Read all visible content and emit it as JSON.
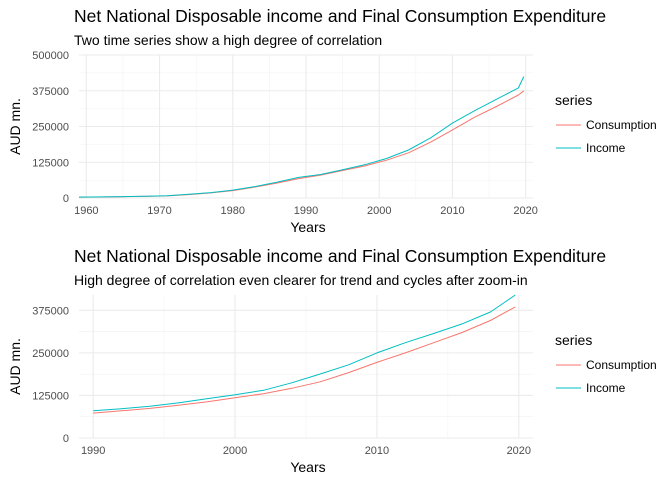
{
  "chart_data": [
    {
      "type": "line",
      "title": "Net National Disposable income and Final Consumption Expenditure",
      "subtitle": "Two time series show a high degree of correlation",
      "xlabel": "Years",
      "ylabel": "AUD mn.",
      "xlim": [
        1959,
        2021
      ],
      "ylim": [
        0,
        500000
      ],
      "xticks": [
        "1960",
        "1970",
        "1980",
        "1990",
        "2000",
        "2010",
        "2020"
      ],
      "yticks": [
        "0",
        "125000",
        "250000",
        "375000",
        "500000"
      ],
      "grid": true,
      "legend": {
        "title": "series",
        "position": "right",
        "entries": [
          "Consumption",
          "Income"
        ]
      },
      "x": [
        1959,
        1962,
        1965,
        1968,
        1971,
        1974,
        1977,
        1980,
        1983,
        1986,
        1989,
        1992,
        1995,
        1998,
        2001,
        2004,
        2007,
        2010,
        2013,
        2016,
        2019,
        2019.75
      ],
      "series": [
        {
          "name": "Consumption",
          "color": "#F8766D",
          "values": [
            3000,
            3500,
            4500,
            5500,
            7500,
            12000,
            18000,
            26000,
            38000,
            52000,
            68000,
            80000,
            96000,
            112000,
            132000,
            158000,
            195000,
            238000,
            282000,
            320000,
            360000,
            375000
          ]
        },
        {
          "name": "Income",
          "color": "#00BFC4",
          "values": [
            3200,
            3800,
            4800,
            6000,
            8000,
            13000,
            19000,
            27500,
            40000,
            55000,
            72000,
            82000,
            99000,
            116000,
            138000,
            168000,
            210000,
            262000,
            305000,
            345000,
            385000,
            425000
          ]
        }
      ]
    },
    {
      "type": "line",
      "title": "Net National Disposable income and Final Consumption Expenditure",
      "subtitle": "High degree of correlation even clearer for trend and cycles after zoom-in",
      "xlabel": "Years",
      "ylabel": "AUD mn.",
      "xlim": [
        1989,
        2021
      ],
      "ylim": [
        0,
        420000
      ],
      "xticks": [
        "1990",
        "2000",
        "2010",
        "2020"
      ],
      "yticks": [
        "0",
        "125000",
        "250000",
        "375000"
      ],
      "grid": true,
      "legend": {
        "title": "series",
        "position": "right",
        "entries": [
          "Consumption",
          "Income"
        ]
      },
      "x": [
        1990,
        1992,
        1994,
        1996,
        1998,
        2000,
        2002,
        2004,
        2006,
        2008,
        2010,
        2012,
        2014,
        2016,
        2018,
        2019.75
      ],
      "series": [
        {
          "name": "Consumption",
          "color": "#F8766D",
          "values": [
            73000,
            80000,
            87000,
            96000,
            106000,
            118000,
            130000,
            146000,
            165000,
            192000,
            222000,
            250000,
            280000,
            310000,
            345000,
            385000
          ]
        },
        {
          "name": "Income",
          "color": "#00BFC4",
          "values": [
            80000,
            86000,
            93000,
            103000,
            115000,
            127000,
            140000,
            162000,
            188000,
            215000,
            250000,
            280000,
            307000,
            335000,
            370000,
            420000
          ]
        }
      ]
    }
  ]
}
